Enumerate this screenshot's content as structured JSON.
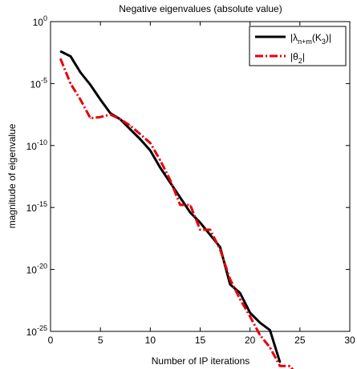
{
  "chart_data": {
    "type": "line",
    "title": "Negative eigenvalues (absolute value)",
    "xlabel": "Number of IP iterations",
    "ylabel": "magnitude of eigenvalue",
    "xlim": [
      0,
      30
    ],
    "ylim_log10": [
      -25,
      0
    ],
    "yscale": "log",
    "grid": false,
    "legend_position": "top-right",
    "x_ticks": [
      0,
      5,
      10,
      15,
      20,
      25,
      30
    ],
    "x_tick_labels": [
      "0",
      "5",
      "10",
      "15",
      "20",
      "25",
      "30"
    ],
    "y_tick_exponents": [
      0,
      -5,
      -10,
      -15,
      -20,
      -25
    ],
    "y_tick_base": "10",
    "series": [
      {
        "name_parts": {
          "pre": "|λ",
          "sub1": "n+m",
          "mid": "(K",
          "sub2": "3",
          "post": ")|"
        },
        "color": "#000000",
        "style": "solid",
        "points": [
          [
            1,
            0.004
          ],
          [
            2,
            0.0016
          ],
          [
            3,
            7.9e-05
          ],
          [
            4,
            7.9e-06
          ],
          [
            5,
            5e-07
          ],
          [
            6,
            4e-08
          ],
          [
            7,
            1.3e-08
          ],
          [
            8,
            2e-09
          ],
          [
            9,
            3.2e-10
          ],
          [
            10,
            4e-11
          ],
          [
            11,
            1.6e-12
          ],
          [
            12,
            1e-13
          ],
          [
            13,
            6.31e-15
          ],
          [
            14,
            4e-16
          ],
          [
            15,
            6e-17
          ],
          [
            16,
            6.3e-18
          ],
          [
            17,
            6.3e-19
          ],
          [
            18,
            6.3e-22
          ],
          [
            19,
            1.26e-22
          ],
          [
            20,
            3.16e-24
          ],
          [
            21,
            5e-25
          ],
          [
            22,
            1.26e-25
          ],
          [
            23,
            3.16e-28
          ]
        ]
      },
      {
        "name_parts": {
          "pre": "|θ",
          "sub1": "2",
          "mid": "",
          "sub2": "",
          "post": "|"
        },
        "color": "#e8000b",
        "style": "dash-dot",
        "points": [
          [
            1,
            0.001
          ],
          [
            2,
            1e-05
          ],
          [
            3,
            5e-07
          ],
          [
            4,
            1.6e-08
          ],
          [
            5,
            2e-08
          ],
          [
            6,
            3.2e-08
          ],
          [
            7,
            1.3e-08
          ],
          [
            8,
            4e-09
          ],
          [
            9,
            8e-10
          ],
          [
            10,
            1.6e-10
          ],
          [
            11,
            6.3e-12
          ],
          [
            12,
            1.6e-13
          ],
          [
            13,
            1.6e-15
          ],
          [
            14,
            1.6e-15
          ],
          [
            15,
            1.6e-17
          ],
          [
            16,
            1.6e-17
          ],
          [
            17,
            4e-19
          ],
          [
            18,
            1.6e-21
          ],
          [
            19,
            4e-23
          ],
          [
            20,
            1.6e-24
          ],
          [
            21,
            5e-26
          ],
          [
            22,
            5e-27
          ],
          [
            23,
            1.6e-28
          ],
          [
            24,
            1.6e-28
          ],
          [
            25,
            1.6e-29
          ],
          [
            26,
            6.3e-30
          ]
        ]
      }
    ]
  }
}
